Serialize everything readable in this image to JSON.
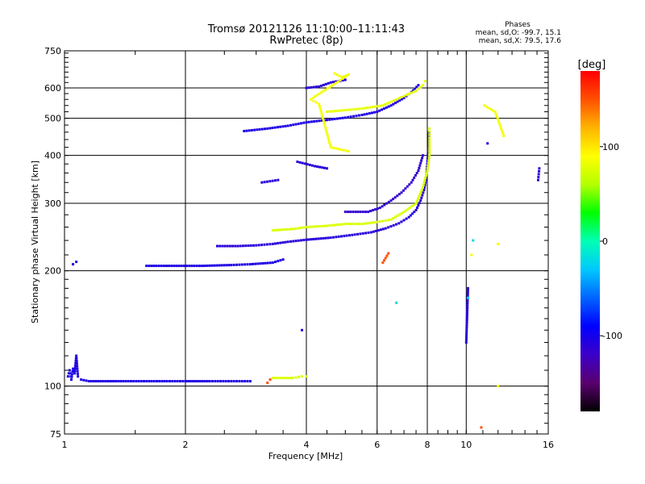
{
  "chart_data": {
    "type": "scatter",
    "title": "Tromsø 20121126 11:10:00–11:11:43",
    "subtitle": "RwPretec (8p)",
    "xlabel": "Frequency [MHz]",
    "ylabel": "Stationary phase Virtual Height [km]",
    "x_scale": "log",
    "y_scale": "log",
    "xlim": [
      1,
      16
    ],
    "ylim": [
      75,
      750
    ],
    "x_ticks": [
      1,
      2,
      4,
      6,
      8,
      10,
      16
    ],
    "y_ticks": [
      75,
      100,
      200,
      300,
      400,
      500,
      600,
      750
    ],
    "grid": true,
    "info": {
      "heading": "Phases",
      "line_o": "mean, sd,O: -99.7, 15.1",
      "line_x": "mean, sd,X:  79.5, 17.6"
    },
    "colorbar": {
      "label": "[deg]",
      "range": [
        -180,
        180
      ],
      "ticks": [
        100,
        0,
        -100
      ],
      "colors": [
        "#000000",
        "#5a006e",
        "#3c00c8",
        "#0000ff",
        "#0064ff",
        "#00c8ff",
        "#00ffb4",
        "#00ff00",
        "#b4ff00",
        "#ffff00",
        "#ffb400",
        "#ff5000",
        "#ff0000"
      ]
    },
    "series": [
      {
        "phase": -105,
        "points": [
          [
            1.02,
            106
          ],
          [
            1.03,
            110
          ],
          [
            1.04,
            104
          ],
          [
            1.05,
            111
          ],
          [
            1.06,
            108
          ],
          [
            1.07,
            120
          ],
          [
            1.08,
            106
          ],
          [
            1.1,
            104
          ],
          [
            1.15,
            103
          ],
          [
            1.25,
            103
          ],
          [
            1.4,
            103
          ],
          [
            1.6,
            103
          ],
          [
            1.8,
            103
          ],
          [
            2.0,
            103
          ],
          [
            2.3,
            103
          ],
          [
            2.6,
            103
          ],
          [
            2.9,
            103
          ]
        ]
      },
      {
        "phase": -105,
        "points": [
          [
            1.05,
            208
          ],
          [
            1.07,
            211
          ],
          [
            1.6,
            206
          ],
          [
            1.9,
            206
          ],
          [
            2.2,
            206
          ],
          [
            2.6,
            207
          ],
          [
            2.9,
            208
          ],
          [
            3.3,
            210
          ],
          [
            3.5,
            214
          ]
        ]
      },
      {
        "phase": -110,
        "points": [
          [
            2.4,
            232
          ],
          [
            2.7,
            232
          ],
          [
            3.0,
            233
          ],
          [
            3.3,
            235
          ],
          [
            3.6,
            238
          ],
          [
            4.0,
            241
          ],
          [
            4.6,
            244
          ],
          [
            5.2,
            248
          ],
          [
            5.8,
            252
          ],
          [
            6.3,
            258
          ],
          [
            6.8,
            266
          ],
          [
            7.2,
            276
          ],
          [
            7.5,
            288
          ],
          [
            7.7,
            305
          ],
          [
            7.85,
            325
          ],
          [
            7.95,
            350
          ],
          [
            8.0,
            380
          ],
          [
            8.05,
            420
          ],
          [
            8.08,
            460
          ]
        ]
      },
      {
        "phase": -115,
        "points": [
          [
            5.0,
            285
          ],
          [
            5.7,
            285
          ],
          [
            6.1,
            292
          ],
          [
            6.5,
            305
          ],
          [
            6.9,
            320
          ],
          [
            7.3,
            340
          ],
          [
            7.6,
            365
          ],
          [
            7.8,
            400
          ]
        ]
      },
      {
        "phase": 75,
        "points": [
          [
            3.3,
            105
          ],
          [
            3.5,
            105
          ],
          [
            3.7,
            105
          ],
          [
            3.9,
            106
          ],
          [
            4.0,
            106
          ],
          [
            3.3,
            255
          ],
          [
            3.7,
            257
          ],
          [
            4.0,
            260
          ],
          [
            4.5,
            262
          ],
          [
            5.0,
            265
          ],
          [
            5.5,
            265
          ],
          [
            6.0,
            268
          ],
          [
            6.5,
            272
          ],
          [
            7.0,
            285
          ],
          [
            7.5,
            300
          ],
          [
            7.8,
            330
          ],
          [
            8.0,
            365
          ],
          [
            8.1,
            400
          ],
          [
            8.1,
            445
          ],
          [
            8.1,
            470
          ]
        ]
      },
      {
        "phase": -105,
        "points": [
          [
            2.8,
            463
          ],
          [
            3.2,
            470
          ],
          [
            3.6,
            478
          ],
          [
            4.0,
            488
          ],
          [
            4.5,
            495
          ],
          [
            5.0,
            502
          ],
          [
            5.5,
            510
          ],
          [
            6.0,
            520
          ],
          [
            6.5,
            540
          ],
          [
            7.0,
            565
          ],
          [
            7.3,
            585
          ],
          [
            7.6,
            610
          ]
        ]
      },
      {
        "phase": 80,
        "points": [
          [
            4.5,
            520
          ],
          [
            5.0,
            525
          ],
          [
            5.5,
            530
          ],
          [
            6.2,
            540
          ],
          [
            6.7,
            560
          ],
          [
            7.1,
            575
          ],
          [
            7.5,
            590
          ],
          [
            7.8,
            610
          ],
          [
            7.9,
            625
          ]
        ]
      },
      {
        "phase": -110,
        "points": [
          [
            4.0,
            600
          ],
          [
            4.3,
            605
          ],
          [
            4.6,
            620
          ],
          [
            5.0,
            630
          ],
          [
            3.8,
            385
          ],
          [
            4.2,
            375
          ],
          [
            4.5,
            370
          ],
          [
            3.1,
            340
          ],
          [
            3.4,
            345
          ]
        ]
      },
      {
        "phase": 85,
        "points": [
          [
            4.7,
            655
          ],
          [
            4.9,
            640
          ],
          [
            5.1,
            650
          ],
          [
            4.1,
            560
          ],
          [
            4.3,
            545
          ],
          [
            4.6,
            420
          ],
          [
            5.1,
            410
          ],
          [
            11.1,
            540
          ],
          [
            11.8,
            520
          ],
          [
            12.4,
            450
          ],
          [
            12.0,
            235
          ],
          [
            12.0,
            100
          ],
          [
            10.3,
            220
          ]
        ]
      },
      {
        "phase": -110,
        "points": [
          [
            11.3,
            430
          ],
          [
            15.2,
            370
          ],
          [
            15.1,
            345
          ],
          [
            10.1,
            180
          ],
          [
            10.0,
            130
          ],
          [
            3.9,
            140
          ]
        ]
      },
      {
        "phase": -20,
        "points": [
          [
            10.4,
            240
          ],
          [
            6.7,
            165
          ],
          [
            10.1,
            170
          ]
        ]
      },
      {
        "phase": 150,
        "points": [
          [
            3.2,
            102
          ],
          [
            3.25,
            104
          ],
          [
            6.2,
            210
          ],
          [
            6.4,
            222
          ],
          [
            10.9,
            78
          ]
        ]
      }
    ]
  }
}
